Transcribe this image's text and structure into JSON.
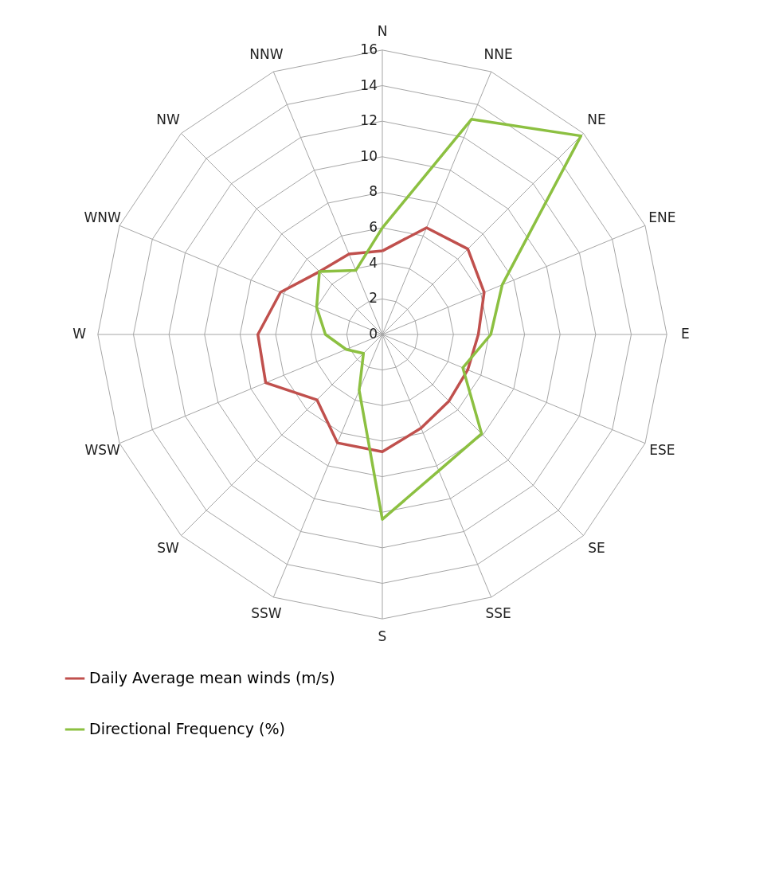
{
  "chart_data": {
    "type": "radar",
    "categories": [
      "N",
      "NNE",
      "NE",
      "ENE",
      "E",
      "ESE",
      "SE",
      "SSE",
      "S",
      "SSW",
      "SW",
      "WSW",
      "W",
      "WNW",
      "NW",
      "NNW"
    ],
    "series": [
      {
        "name": "Daily Average mean winds (m/s)",
        "color": "#c0504d",
        "values": [
          4.7,
          6.5,
          6.8,
          6.2,
          5.4,
          5.2,
          5.3,
          5.7,
          6.6,
          6.6,
          5.2,
          7.1,
          7.0,
          6.2,
          5.0,
          4.9
        ]
      },
      {
        "name": "Directional Frequency (%)",
        "color": "#8cc041",
        "values": [
          6.0,
          13.1,
          15.8,
          7.3,
          6.1,
          4.9,
          7.9,
          8.3,
          10.4,
          3.4,
          1.5,
          2.2,
          3.2,
          4.0,
          5.0,
          3.9
        ]
      }
    ],
    "ylim": [
      0,
      16
    ],
    "yticks": [
      0,
      2,
      4,
      6,
      8,
      10,
      12,
      14,
      16
    ],
    "grid": true,
    "legend": "bottom"
  }
}
